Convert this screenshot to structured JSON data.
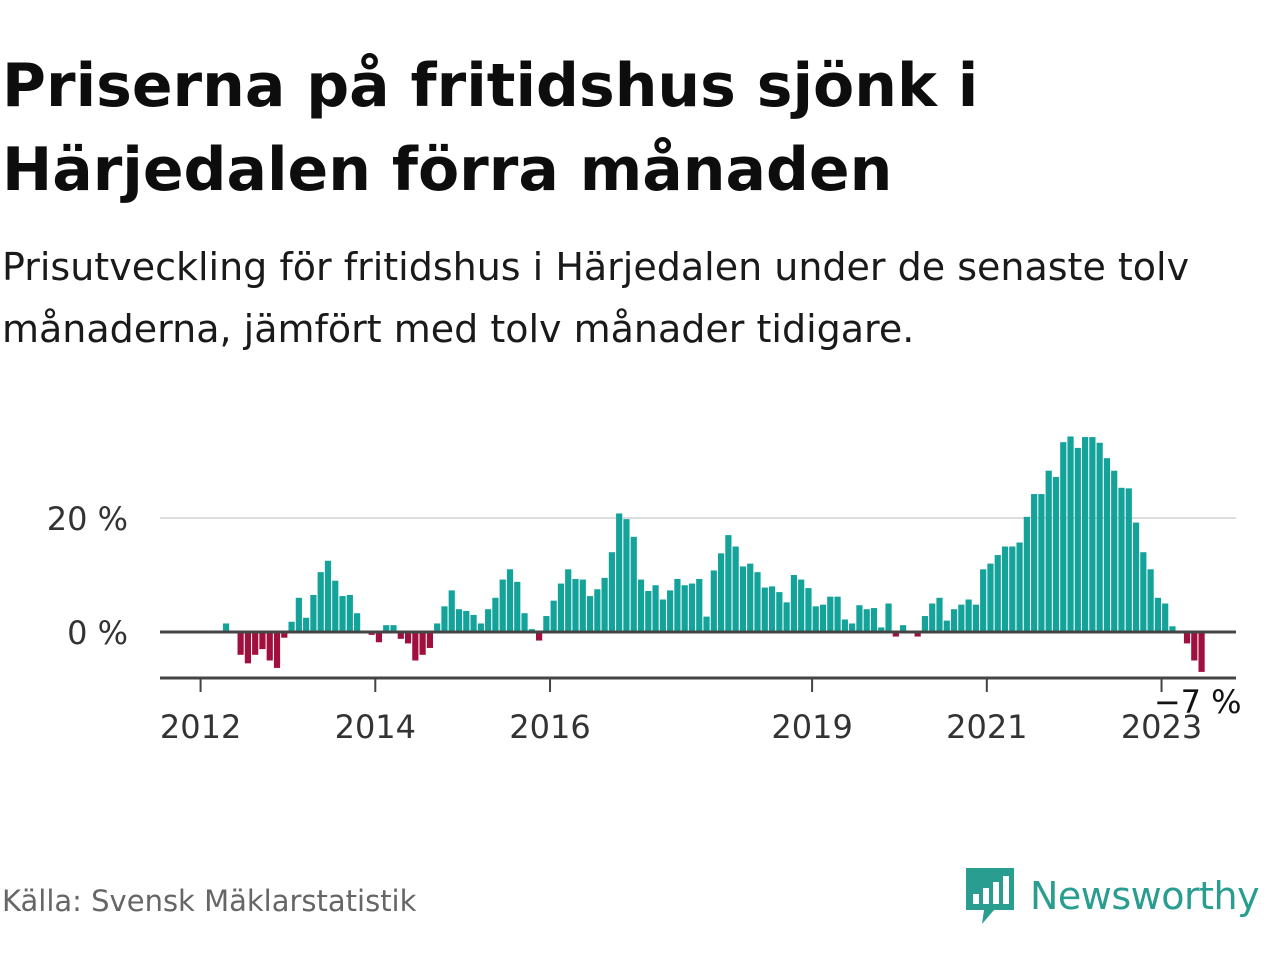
{
  "title": "Priserna på fritidshus sjönk i Härjedalen förra månaden",
  "subtitle": "Prisutveckling för fritidshus i Härjedalen under de senaste tolv månaderna, jämfört med tolv månader tidigare.",
  "source": "Källa: Svensk Mäklarstatistik",
  "brand": "Newsworthy",
  "colors": {
    "positive": "#14a39a",
    "negative": "#a0103e",
    "brand": "#2a9d91",
    "grid": "#dddddd",
    "zero_line": "#444444"
  },
  "chart_data": {
    "type": "bar",
    "title": "Priserna på fritidshus sjönk i Härjedalen förra månaden",
    "subtitle": "Prisutveckling för fritidshus i Härjedalen under de senaste tolv månaderna, jämfört med tolv månader tidigare.",
    "xlabel": "",
    "ylabel": "",
    "x_start": "2012-02",
    "x_end": "2023-05",
    "x_tick_labels": [
      "2012",
      "2014",
      "2016",
      "2019",
      "2021",
      "2023"
    ],
    "x_tick_dates": [
      "2012-01",
      "2014-01",
      "2016-01",
      "2019-01",
      "2021-01",
      "2023-01"
    ],
    "y_tick_labels": [
      "0 %",
      "20 %"
    ],
    "y_tick_values": [
      0,
      20
    ],
    "ylim": [
      -8,
      36
    ],
    "grid": "horizontal",
    "end_label": "−7 %",
    "series": [
      {
        "values": [
          0,
          0,
          1.5,
          0,
          -4,
          -5.5,
          -4,
          -3,
          -5,
          -6.3,
          -1,
          1.8,
          6,
          2.5,
          6.5,
          10.5,
          12.5,
          9,
          6.3,
          6.5,
          3.3,
          0,
          -0.5,
          -1.8,
          1.2,
          1.2,
          -1.2,
          -2,
          -5,
          -4,
          -2.8,
          1.5,
          4.5,
          7.3,
          4,
          3.7,
          3,
          1.5,
          4,
          6,
          9.2,
          11,
          8.8,
          3.3,
          0.5,
          -1.5,
          2.8,
          5.5,
          8.5,
          11,
          9.3,
          9.2,
          6.3,
          7.5,
          9.5,
          14,
          20.8,
          19.8,
          16.7,
          9.2,
          7.2,
          8.2,
          5.7,
          7.3,
          9.3,
          8.2,
          8.5,
          9.3,
          2.7,
          10.8,
          13.8,
          17,
          15,
          11.5,
          12,
          10.5,
          7.8,
          8,
          7,
          5.2,
          10,
          9.2,
          7.7,
          4.5,
          4.8,
          6.2,
          6.2,
          2.2,
          1.5,
          4.7,
          4,
          4.2,
          0.8,
          5,
          -0.8,
          1.2,
          0,
          -0.8,
          2.8,
          5,
          6,
          2,
          4,
          4.8,
          5.7,
          4.8,
          11,
          12,
          13.5,
          15,
          15,
          15.7,
          20.2,
          24.2,
          24.2,
          28.3,
          27.2,
          33.3,
          34.3,
          32.3,
          34.2,
          34.2,
          33.2,
          30.5,
          28.3,
          25.3,
          25.2,
          19.2,
          14,
          11,
          6,
          5,
          1,
          0,
          -2,
          -5,
          -7
        ]
      }
    ]
  }
}
